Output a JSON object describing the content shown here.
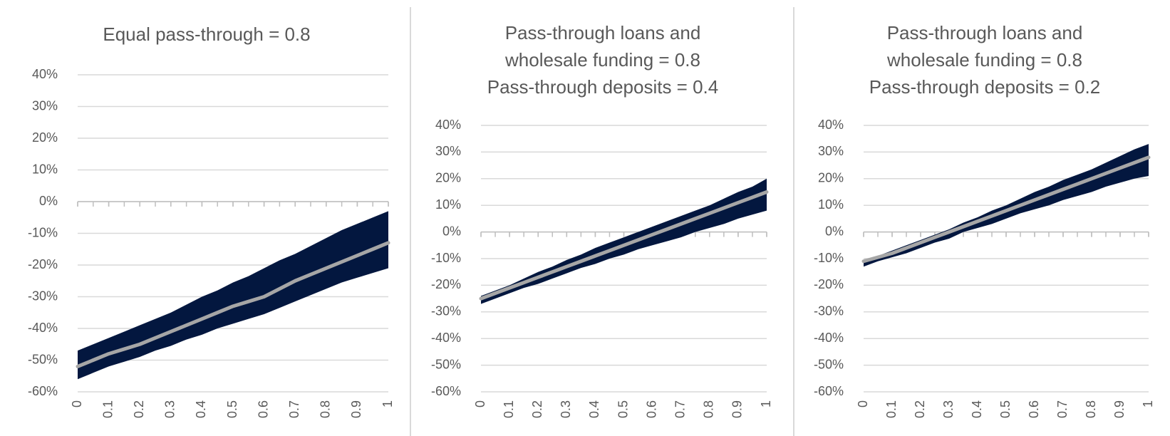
{
  "chart_data": [
    {
      "type": "band-line",
      "title": [
        "Equal pass-through = 0.8"
      ],
      "x": [
        0,
        0.05,
        0.1,
        0.15,
        0.2,
        0.25,
        0.3,
        0.35,
        0.4,
        0.45,
        0.5,
        0.55,
        0.6,
        0.65,
        0.7,
        0.75,
        0.8,
        0.85,
        0.9,
        0.95,
        1
      ],
      "values": [
        -52,
        -50,
        -48,
        -46.5,
        -45,
        -43,
        -41,
        -39,
        -37,
        -35,
        -33,
        -31.5,
        -30,
        -27.5,
        -25,
        -23,
        -21,
        -19,
        -17,
        -15,
        -13
      ],
      "color": "#a6a6a6",
      "band": {
        "color": "#03173f",
        "lower": [
          -56,
          -54,
          -52,
          -50.5,
          -49,
          -47,
          -45.5,
          -43.5,
          -42,
          -40,
          -38.5,
          -37,
          -35.5,
          -33.5,
          -31.5,
          -29.5,
          -27.5,
          -25.5,
          -24,
          -22.5,
          -21
        ],
        "upper": [
          -47,
          -45,
          -43,
          -41,
          -39,
          -37,
          -35,
          -32.5,
          -30,
          -28,
          -25.5,
          -23.5,
          -21,
          -18.5,
          -16.5,
          -14,
          -11.5,
          -9,
          -7,
          -5,
          -3
        ]
      },
      "xlim": [
        0,
        1
      ],
      "xticks": [
        0,
        0.1,
        0.2,
        0.3,
        0.4,
        0.5,
        0.6,
        0.7,
        0.8,
        0.9,
        1
      ],
      "ylim": [
        -60,
        40
      ],
      "yticks": [
        {
          "value": -60,
          "label": "-60%"
        },
        {
          "value": -50,
          "label": "-50%"
        },
        {
          "value": -40,
          "label": "-40%"
        },
        {
          "value": -30,
          "label": "-30%"
        },
        {
          "value": -20,
          "label": "-20%"
        },
        {
          "value": -10,
          "label": "-10%"
        },
        {
          "value": 0,
          "label": "0%"
        },
        {
          "value": 10,
          "label": "10%"
        },
        {
          "value": 20,
          "label": "20%"
        },
        {
          "value": 30,
          "label": "30%"
        },
        {
          "value": 40,
          "label": "40%"
        }
      ],
      "grid": true
    },
    {
      "type": "band-line",
      "title": [
        "Pass-through loans and",
        "wholesale funding = 0.8",
        "Pass-through deposits = 0.4"
      ],
      "x": [
        0,
        0.05,
        0.1,
        0.15,
        0.2,
        0.25,
        0.3,
        0.35,
        0.4,
        0.45,
        0.5,
        0.55,
        0.6,
        0.65,
        0.7,
        0.75,
        0.8,
        0.85,
        0.9,
        0.95,
        1
      ],
      "values": [
        -25,
        -23,
        -21,
        -19,
        -17,
        -15,
        -13,
        -11,
        -9,
        -7,
        -5,
        -3,
        -1,
        1,
        3,
        5,
        7,
        9,
        11,
        13,
        15
      ],
      "color": "#a6a6a6",
      "band": {
        "color": "#03173f",
        "lower": [
          -27,
          -25,
          -23,
          -21,
          -19.5,
          -17.5,
          -15.5,
          -13.5,
          -12,
          -10,
          -8.5,
          -6.5,
          -5,
          -3.5,
          -2,
          0,
          1.5,
          3,
          5,
          6.5,
          8
        ],
        "upper": [
          -24,
          -22,
          -20,
          -17.5,
          -15,
          -13,
          -10.5,
          -8.5,
          -6,
          -4,
          -2,
          0,
          2,
          4,
          6,
          8,
          10,
          12.5,
          15,
          17,
          20
        ]
      },
      "xlim": [
        0,
        1
      ],
      "xticks": [
        0,
        0.1,
        0.2,
        0.3,
        0.4,
        0.5,
        0.6,
        0.7,
        0.8,
        0.9,
        1
      ],
      "ylim": [
        -60,
        40
      ],
      "yticks": [
        {
          "value": -60,
          "label": "-60%"
        },
        {
          "value": -50,
          "label": "-50%"
        },
        {
          "value": -40,
          "label": "-40%"
        },
        {
          "value": -30,
          "label": "-30%"
        },
        {
          "value": -20,
          "label": "-20%"
        },
        {
          "value": -10,
          "label": "-10%"
        },
        {
          "value": 0,
          "label": "0%"
        },
        {
          "value": 10,
          "label": "10%"
        },
        {
          "value": 20,
          "label": "20%"
        },
        {
          "value": 30,
          "label": "30%"
        },
        {
          "value": 40,
          "label": "40%"
        }
      ],
      "grid": true
    },
    {
      "type": "band-line",
      "title": [
        "Pass-through loans and",
        "wholesale funding = 0.8",
        "Pass-through deposits = 0.2"
      ],
      "x": [
        0,
        0.05,
        0.1,
        0.15,
        0.2,
        0.25,
        0.3,
        0.35,
        0.4,
        0.45,
        0.5,
        0.55,
        0.6,
        0.65,
        0.7,
        0.75,
        0.8,
        0.85,
        0.9,
        0.95,
        1
      ],
      "values": [
        -11,
        -9.5,
        -8,
        -6,
        -4,
        -2,
        0,
        2,
        4,
        6,
        8,
        10,
        12,
        14,
        16,
        18,
        20,
        22,
        24,
        26,
        28
      ],
      "color": "#a6a6a6",
      "band": {
        "color": "#03173f",
        "lower": [
          -13,
          -11,
          -9.5,
          -8,
          -6,
          -4,
          -2.5,
          0,
          1.5,
          3,
          5,
          7,
          8.5,
          10,
          12,
          13.5,
          15,
          17,
          18.5,
          20,
          21
        ],
        "upper": [
          -11,
          -9,
          -7,
          -5,
          -3,
          -1,
          1,
          3.5,
          5.5,
          8,
          10,
          12.5,
          15,
          17,
          19.5,
          21.5,
          23.5,
          26,
          28.5,
          31,
          33
        ]
      },
      "xlim": [
        0,
        1
      ],
      "xticks": [
        0,
        0.1,
        0.2,
        0.3,
        0.4,
        0.5,
        0.6,
        0.7,
        0.8,
        0.9,
        1
      ],
      "ylim": [
        -60,
        40
      ],
      "yticks": [
        {
          "value": -60,
          "label": "-60%"
        },
        {
          "value": -50,
          "label": "-50%"
        },
        {
          "value": -40,
          "label": "-40%"
        },
        {
          "value": -30,
          "label": "-30%"
        },
        {
          "value": -20,
          "label": "-20%"
        },
        {
          "value": -10,
          "label": "-10%"
        },
        {
          "value": 0,
          "label": "0%"
        },
        {
          "value": 10,
          "label": "10%"
        },
        {
          "value": 20,
          "label": "20%"
        },
        {
          "value": 30,
          "label": "30%"
        },
        {
          "value": 40,
          "label": "40%"
        }
      ],
      "grid": true
    }
  ]
}
